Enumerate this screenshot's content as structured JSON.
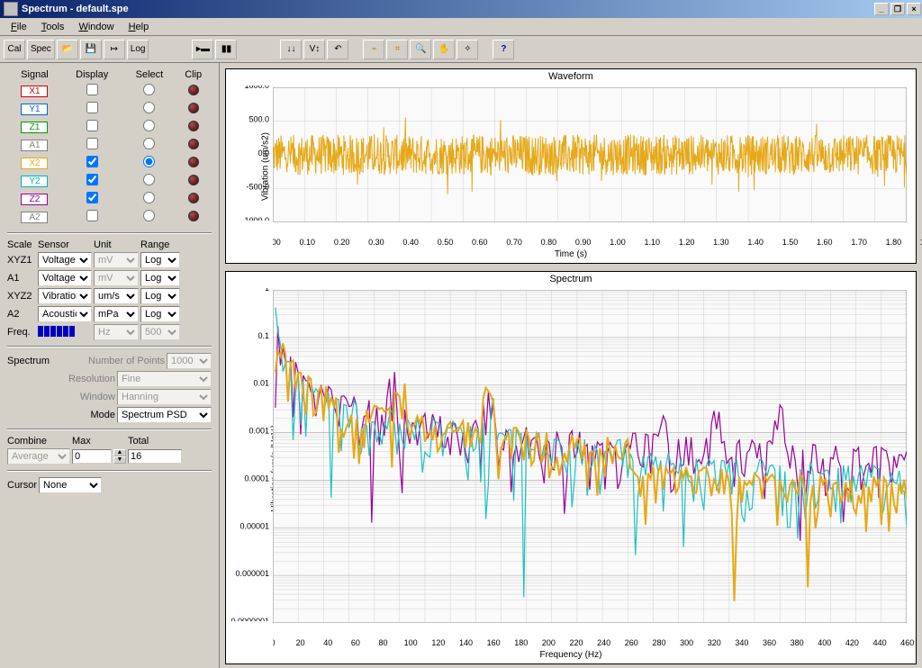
{
  "window": {
    "title": "Spectrum - default.spe"
  },
  "menu": {
    "file": "File",
    "tools": "Tools",
    "window": "Window",
    "help": "Help"
  },
  "toolbar": {
    "cal": "Cal",
    "spec": "Spec",
    "log": "Log"
  },
  "signals": {
    "headers": {
      "signal": "Signal",
      "display": "Display",
      "select": "Select",
      "clip": "Clip"
    },
    "rows": [
      {
        "name": "X1",
        "color": "#cc0000",
        "display": false,
        "select": false
      },
      {
        "name": "Y1",
        "color": "#0066cc",
        "display": false,
        "select": false
      },
      {
        "name": "Z1",
        "color": "#009900",
        "display": false,
        "select": false
      },
      {
        "name": "A1",
        "color": "#808080",
        "display": false,
        "select": false
      },
      {
        "name": "X2",
        "color": "#e6a817",
        "display": true,
        "select": true
      },
      {
        "name": "Y2",
        "color": "#00b3b3",
        "display": true,
        "select": false
      },
      {
        "name": "Z2",
        "color": "#990099",
        "display": true,
        "select": false
      },
      {
        "name": "A2",
        "color": "#808080",
        "display": false,
        "select": false
      }
    ]
  },
  "scale": {
    "headers": {
      "scale": "Scale",
      "sensor": "Sensor",
      "unit": "Unit",
      "range": "Range"
    },
    "rows": [
      {
        "label": "XYZ1",
        "sensor": "Voltage",
        "unit": "mV",
        "range": "Log",
        "unit_disabled": true
      },
      {
        "label": "A1",
        "sensor": "Voltage",
        "unit": "mV",
        "range": "Log",
        "unit_disabled": true
      },
      {
        "label": "XYZ2",
        "sensor": "Vibration",
        "unit": "um/s",
        "range": "Log",
        "unit_disabled": false
      },
      {
        "label": "A2",
        "sensor": "Acoustic",
        "unit": "mPa",
        "range": "Log",
        "unit_disabled": false
      }
    ],
    "freq_label": "Freq.",
    "freq_unit": "Hz",
    "freq_range": "500"
  },
  "spectrum_cfg": {
    "title": "Spectrum",
    "points_label": "Number of Points",
    "points": "1000",
    "res_label": "Resolution",
    "res": "Fine",
    "window_label": "Window",
    "window": "Hanning",
    "mode_label": "Mode",
    "mode": "Spectrum PSD"
  },
  "combine": {
    "combine_label": "Combine",
    "combine": "Average",
    "max_label": "Max",
    "max": "0",
    "total_label": "Total",
    "total": "16"
  },
  "cursor": {
    "label": "Cursor",
    "value": "None"
  },
  "charts": {
    "chart_bgcolor": "#fafafa",
    "grid_color": "#d8d8d8",
    "series_colors": {
      "X2": "#e6a817",
      "Y2": "#20c0c0",
      "Z2": "#990099"
    },
    "waveform": {
      "title": "Waveform",
      "ylabel": "Vibration (um/s2)",
      "xlabel": "Time (s)",
      "xlim": [
        0,
        2.0
      ],
      "xtick_step": 0.1,
      "ylim": [
        -1000,
        1000
      ],
      "ytick_step": 500,
      "series_color": "#e6a817",
      "amplitude": 300,
      "noise_peak": 600
    },
    "spectrum": {
      "title": "Spectrum",
      "ylabel": "Vibration (um/s /Hz½)",
      "xlabel": "Frequency (Hz)",
      "xlim": [
        0,
        500
      ],
      "xtick_step": 20,
      "ylim_log": [
        1e-07,
        1
      ],
      "yticks_log": [
        1,
        0.1,
        0.01,
        0.001,
        0.0001,
        1e-05,
        1e-06,
        1e-07
      ],
      "ytick_labels": [
        "1",
        "0.1",
        "0.01",
        "0.001",
        "0.0001",
        "0.00001",
        "0.000001",
        "0.0000001"
      ]
    }
  }
}
